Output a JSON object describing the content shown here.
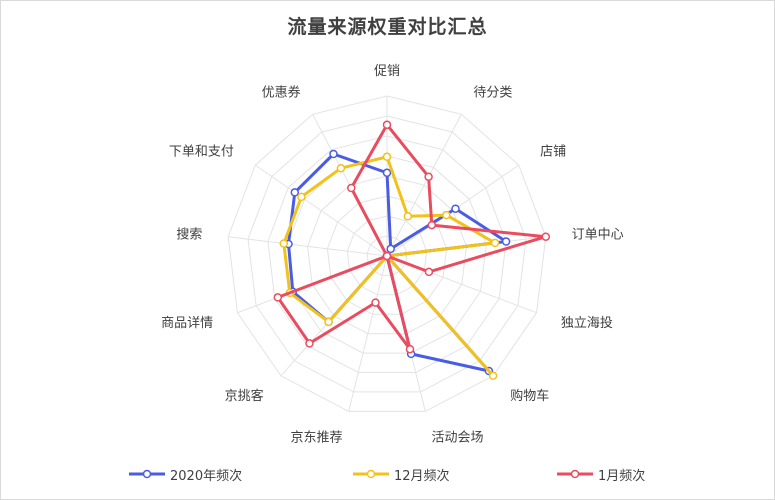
{
  "chart_data": {
    "type": "radar",
    "title": "流量来源权重对比汇总",
    "categories": [
      "促销",
      "待分类",
      "店铺",
      "订单中心",
      "独立海投",
      "购物车",
      "活动会场",
      "京东推荐",
      "京挑客",
      "商品详情",
      "搜索",
      "下单和支付",
      "优惠券"
    ],
    "rmax": 100,
    "rings": 8,
    "grid": true,
    "legend_position": "bottom",
    "series": [
      {
        "name": "2020年频次",
        "color": "#4a5ce3",
        "values": [
          52,
          5,
          52,
          75,
          0,
          96,
          63,
          0,
          55,
          63,
          62,
          70,
          72
        ]
      },
      {
        "name": "12月频次",
        "color": "#f2c21b",
        "values": [
          62,
          28,
          45,
          68,
          0,
          100,
          0,
          0,
          55,
          65,
          65,
          65,
          62
        ]
      },
      {
        "name": "1月频次",
        "color": "#e94c5e",
        "values": [
          82,
          56,
          34,
          100,
          28,
          0,
          60,
          30,
          73,
          73,
          0,
          0,
          48
        ]
      }
    ]
  }
}
